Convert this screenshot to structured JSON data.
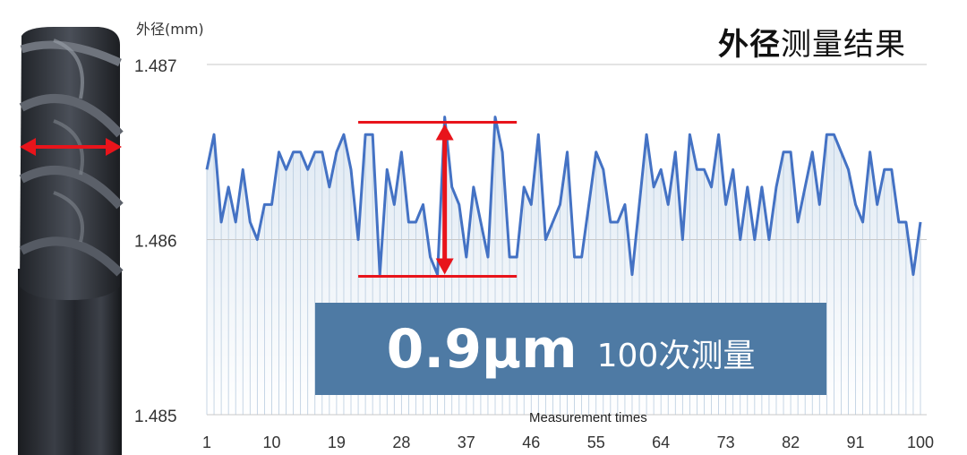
{
  "title": {
    "bold": "外径",
    "regular": "测量结果"
  },
  "callout": {
    "value": "0.9μm",
    "note": "100次测量"
  },
  "chart_data": {
    "type": "line",
    "ylabel": "外径(mm)",
    "xlabel": "Measurement times",
    "ylim": [
      1.485,
      1.487
    ],
    "xlim": [
      1,
      100
    ],
    "y_ticks": [
      "1.487",
      "1.486",
      "1.485"
    ],
    "y_tick_values": [
      1.487,
      1.486,
      1.485
    ],
    "x_ticks": [
      "1",
      "10",
      "19",
      "28",
      "37",
      "46",
      "55",
      "64",
      "73",
      "82",
      "91",
      "100"
    ],
    "x_tick_values": [
      1,
      10,
      19,
      28,
      37,
      46,
      55,
      64,
      73,
      82,
      91,
      100
    ],
    "series": [
      {
        "color": "#4472c4",
        "values": [
          1.4864,
          1.4866,
          1.4861,
          1.4863,
          1.4861,
          1.4864,
          1.4861,
          1.486,
          1.4862,
          1.4862,
          1.4865,
          1.4864,
          1.4865,
          1.4865,
          1.4864,
          1.4865,
          1.4865,
          1.4863,
          1.4865,
          1.4866,
          1.4864,
          1.486,
          1.4866,
          1.4866,
          1.4858,
          1.4864,
          1.4862,
          1.4865,
          1.4861,
          1.4861,
          1.4862,
          1.4859,
          1.4858,
          1.4867,
          1.4863,
          1.4862,
          1.4859,
          1.4863,
          1.4861,
          1.4859,
          1.4867,
          1.4865,
          1.4859,
          1.4859,
          1.4863,
          1.4862,
          1.4866,
          1.486,
          1.4861,
          1.4862,
          1.4865,
          1.4859,
          1.4859,
          1.4862,
          1.4865,
          1.4864,
          1.4861,
          1.4861,
          1.4862,
          1.4858,
          1.4862,
          1.4866,
          1.4863,
          1.4864,
          1.4862,
          1.4865,
          1.486,
          1.4866,
          1.4864,
          1.4864,
          1.4863,
          1.4866,
          1.4862,
          1.4864,
          1.486,
          1.4863,
          1.486,
          1.4863,
          1.486,
          1.4863,
          1.4865,
          1.4865,
          1.4861,
          1.4863,
          1.4865,
          1.4862,
          1.4866,
          1.4866,
          1.4865,
          1.4864,
          1.4862,
          1.4861,
          1.4865,
          1.4862,
          1.4864,
          1.4864,
          1.4861,
          1.4861,
          1.4858,
          1.4861
        ]
      }
    ],
    "annotation": {
      "top_value": 1.48667,
      "bottom_value": 1.48579,
      "x_from": 22,
      "x_to": 44,
      "arrow_x": 34,
      "color": "#e8141b"
    },
    "tool_arrow_color": "#e8141b"
  }
}
